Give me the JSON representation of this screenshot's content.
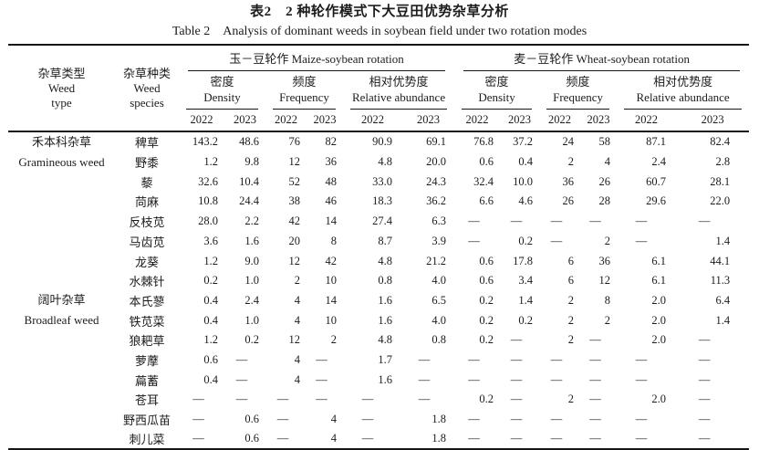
{
  "page": {
    "background": "#ffffff",
    "text_color": "#1c1c1c",
    "rule_color": "#161616"
  },
  "caption": {
    "zh": "表2　2 种轮作模式下大豆田优势杂草分析",
    "en": "Table 2　Analysis of dominant weeds in soybean field under two rotation modes"
  },
  "table": {
    "headers": {
      "weed_type": "杂草类型\nWeed\ntype",
      "weed_species": "杂草种类\nWeed\nspecies",
      "groups": [
        "玉－豆轮作 Maize-soybean rotation",
        "麦－豆轮作 Wheat-soybean rotation"
      ],
      "metrics": [
        "密度\nDensity",
        "频度\nFrequency",
        "相对优势度\nRelative abundance"
      ],
      "years": [
        "2022",
        "2023"
      ]
    },
    "empty_marker": "—",
    "row_groups": [
      {
        "type_zh": "禾本科杂草",
        "type_en": "Gramineous weed",
        "rows": [
          {
            "species": "稗草",
            "values": [
              "143.2",
              "48.6",
              "76",
              "82",
              "90.9",
              "69.1",
              "76.8",
              "37.2",
              "24",
              "58",
              "87.1",
              "82.4"
            ]
          },
          {
            "species": "野黍",
            "values": [
              "1.2",
              "9.8",
              "12",
              "36",
              "4.8",
              "20.0",
              "0.6",
              "0.4",
              "2",
              "4",
              "2.4",
              "2.8"
            ]
          }
        ]
      },
      {
        "type_zh": "阔叶杂草",
        "type_en": "Broadleaf weed",
        "rows": [
          {
            "species": "藜",
            "values": [
              "32.6",
              "10.4",
              "52",
              "48",
              "33.0",
              "24.3",
              "32.4",
              "10.0",
              "36",
              "26",
              "60.7",
              "28.1"
            ]
          },
          {
            "species": "苘麻",
            "values": [
              "10.8",
              "24.4",
              "38",
              "46",
              "18.3",
              "36.2",
              "6.6",
              "4.6",
              "26",
              "28",
              "29.6",
              "22.0"
            ]
          },
          {
            "species": "反枝苋",
            "values": [
              "28.0",
              "2.2",
              "42",
              "14",
              "27.4",
              "6.3",
              "—",
              "—",
              "—",
              "—",
              "—",
              "—"
            ]
          },
          {
            "species": "马齿苋",
            "values": [
              "3.6",
              "1.6",
              "20",
              "8",
              "8.7",
              "3.9",
              "—",
              "0.2",
              "—",
              "2",
              "—",
              "1.4"
            ]
          },
          {
            "species": "龙葵",
            "values": [
              "1.2",
              "9.0",
              "12",
              "42",
              "4.8",
              "21.2",
              "0.6",
              "17.8",
              "6",
              "36",
              "6.1",
              "44.1"
            ]
          },
          {
            "species": "水棘针",
            "values": [
              "0.2",
              "1.0",
              "2",
              "10",
              "0.8",
              "4.0",
              "0.6",
              "3.4",
              "6",
              "12",
              "6.1",
              "11.3"
            ]
          },
          {
            "species": "本氏蓼",
            "values": [
              "0.4",
              "2.4",
              "4",
              "14",
              "1.6",
              "6.5",
              "0.2",
              "1.4",
              "2",
              "8",
              "2.0",
              "6.4"
            ]
          },
          {
            "species": "铁苋菜",
            "values": [
              "0.4",
              "1.0",
              "4",
              "10",
              "1.6",
              "4.0",
              "0.2",
              "0.2",
              "2",
              "2",
              "2.0",
              "1.4"
            ]
          },
          {
            "species": "狼耙草",
            "values": [
              "1.2",
              "0.2",
              "12",
              "2",
              "4.8",
              "0.8",
              "0.2",
              "—",
              "2",
              "—",
              "2.0",
              "—"
            ]
          },
          {
            "species": "萝藦",
            "values": [
              "0.6",
              "—",
              "4",
              "—",
              "1.7",
              "—",
              "—",
              "—",
              "—",
              "—",
              "—",
              "—"
            ]
          },
          {
            "species": "萹蓄",
            "values": [
              "0.4",
              "—",
              "4",
              "—",
              "1.6",
              "—",
              "—",
              "—",
              "—",
              "—",
              "—",
              "—"
            ]
          },
          {
            "species": "苍耳",
            "values": [
              "—",
              "—",
              "—",
              "—",
              "—",
              "—",
              "0.2",
              "—",
              "2",
              "—",
              "2.0",
              "—"
            ]
          },
          {
            "species": "野西瓜苗",
            "values": [
              "—",
              "0.6",
              "—",
              "4",
              "—",
              "1.8",
              "—",
              "—",
              "—",
              "—",
              "—",
              "—"
            ]
          },
          {
            "species": "刺儿菜",
            "values": [
              "—",
              "0.6",
              "—",
              "4",
              "—",
              "1.8",
              "—",
              "—",
              "—",
              "—",
              "—",
              "—"
            ]
          }
        ]
      }
    ]
  }
}
